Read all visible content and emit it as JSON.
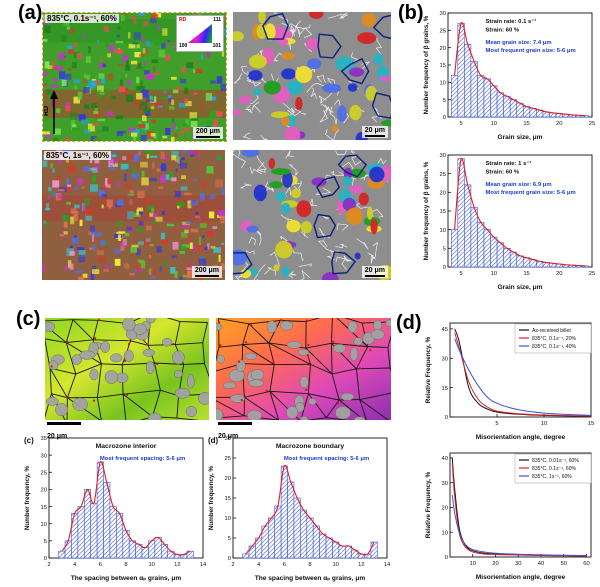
{
  "panels": {
    "a": {
      "label": "(a)",
      "maps": [
        {
          "title": "835°C, 0.1s⁻¹, 60%",
          "scale": "200 μm"
        },
        {
          "scale": "20 μm"
        },
        {
          "title": "835°C, 1s⁻¹, 60%",
          "scale": "200 μm"
        },
        {
          "scale": "20 μm"
        }
      ],
      "direction_label": "RD",
      "ipf_legend": {
        "rd": "RD",
        "c111": "111",
        "c100": "100",
        "c101": "101"
      }
    },
    "b": {
      "label": "(b)"
    },
    "c": {
      "label": "(c)",
      "scales": [
        "20 μm",
        "20 μm"
      ]
    },
    "d": {
      "label": "(d)"
    }
  },
  "colors": {
    "bar": "#3a55d6",
    "fit": "#e02020",
    "annotation_blue": "#1a3bd6",
    "axis": "#111111"
  },
  "chart_data": [
    {
      "id": "b-top",
      "type": "bar",
      "x": [
        4,
        5,
        6,
        7,
        8,
        9,
        10,
        11,
        12,
        13,
        14,
        15,
        16,
        17,
        18,
        19,
        20,
        21,
        22,
        23,
        24
      ],
      "values": [
        12,
        27,
        21,
        16,
        12,
        11,
        9,
        7,
        6,
        5,
        4,
        3,
        2.5,
        2,
        1.5,
        1.2,
        1,
        0.8,
        0.6,
        0.5,
        0.4
      ],
      "bar_width": 1,
      "xlabel": "Grain size, μm",
      "ylabel": "Number frequency of β grains, %",
      "xlim": [
        3,
        25
      ],
      "ylim": [
        0,
        30
      ],
      "xticks": [
        5,
        10,
        15,
        20,
        25
      ],
      "yticks": [
        0,
        5,
        10,
        15,
        20,
        25,
        30
      ],
      "ann_x": 0.26,
      "ann_y": 10,
      "annotations": [
        {
          "text": "Strain rate:  0.1 s⁻¹",
          "color": "#111111"
        },
        {
          "text": "Strain:  60 %",
          "color": "#111111"
        },
        {
          "text": "Mean grain size:  7.4 μm",
          "color": "#1a3bd6",
          "dy": 4
        },
        {
          "text": "Most frequent grain size:  5-6 μm",
          "color": "#1a3bd6"
        }
      ]
    },
    {
      "id": "b-bottom",
      "type": "bar",
      "x": [
        4,
        5,
        6,
        7,
        8,
        9,
        10,
        11,
        12,
        13,
        14,
        15,
        16,
        17,
        18,
        19,
        20,
        21,
        22,
        23,
        24
      ],
      "values": [
        10,
        29,
        22,
        16,
        12,
        10,
        8,
        6.5,
        5,
        4,
        3,
        2.5,
        2,
        1.5,
        1.2,
        1,
        0.8,
        0.6,
        0.5,
        0.4,
        0.3
      ],
      "bar_width": 1,
      "xlabel": "Grain size, μm",
      "ylabel": "Number frequency of β grains, %",
      "xlim": [
        3,
        25
      ],
      "ylim": [
        0,
        30
      ],
      "xticks": [
        5,
        10,
        15,
        20,
        25
      ],
      "yticks": [
        0,
        5,
        10,
        15,
        20,
        25,
        30
      ],
      "ann_x": 0.26,
      "ann_y": 10,
      "annotations": [
        {
          "text": "Strain rate:  1 s⁻¹",
          "color": "#111111"
        },
        {
          "text": "Strain:  60 %",
          "color": "#111111"
        },
        {
          "text": "Mean grain size:  6.9 μm",
          "color": "#1a3bd6",
          "dy": 4
        },
        {
          "text": "Most frequent grain size:  5-6 μm",
          "color": "#1a3bd6"
        }
      ]
    },
    {
      "id": "c-interior",
      "type": "bar",
      "corner_label": "(c)",
      "title": "Macrozone interior",
      "x": [
        3,
        3.5,
        4,
        4.5,
        5,
        5.5,
        6,
        6.5,
        7,
        7.5,
        8,
        8.5,
        9,
        9.5,
        10,
        10.5,
        11,
        11.5,
        12,
        12.5,
        13
      ],
      "values": [
        2,
        5,
        13,
        15,
        20,
        16,
        28,
        22,
        15,
        13,
        8,
        5,
        4,
        3,
        5,
        6,
        4,
        2,
        1,
        1,
        2
      ],
      "bar_width": 0.5,
      "xlabel": "The spacing between αₚ grains, μm",
      "ylabel": "Number frequency, %",
      "xlim": [
        2,
        14
      ],
      "ylim": [
        0,
        35
      ],
      "xticks": [
        2,
        4,
        6,
        8,
        10,
        12,
        14
      ],
      "yticks": [
        0,
        5,
        10,
        15,
        20,
        25,
        30,
        35
      ],
      "ann_x": 0.33,
      "ann_y": 22,
      "annotations": [
        {
          "text": "Most frequent spacing:  5-6 μm",
          "color": "#1a3bd6"
        }
      ]
    },
    {
      "id": "c-boundary",
      "type": "bar",
      "corner_label": "(d)",
      "title": "Macrozone boundary",
      "x": [
        3,
        3.5,
        4,
        4.5,
        5,
        5.5,
        6,
        6.5,
        7,
        7.5,
        8,
        8.5,
        9,
        9.5,
        10,
        10.5,
        11,
        11.5,
        12,
        12.5,
        13
      ],
      "values": [
        1,
        3,
        5,
        8,
        10,
        13,
        23,
        19,
        15,
        12,
        10,
        8,
        6,
        5,
        4,
        3,
        3,
        2,
        1,
        1,
        4
      ],
      "bar_width": 0.5,
      "xlabel": "The spacing between αₚ grains, μm",
      "ylabel": "Number frequency, %",
      "xlim": [
        2,
        14
      ],
      "ylim": [
        0,
        30
      ],
      "xticks": [
        2,
        4,
        6,
        8,
        10,
        12,
        14
      ],
      "yticks": [
        0,
        5,
        10,
        15,
        20,
        25,
        30
      ],
      "ann_x": 0.33,
      "ann_y": 22,
      "annotations": [
        {
          "text": "Most frequent spacing:  5-6 μm",
          "color": "#1a3bd6"
        }
      ]
    },
    {
      "id": "d-top",
      "type": "line",
      "x": [
        0.5,
        1,
        2,
        3,
        4,
        5,
        7,
        10,
        15
      ],
      "series": [
        {
          "name": "As-received billet",
          "color": "#111111",
          "values": [
            45,
            38,
            15,
            7,
            4,
            2.5,
            1.5,
            0.8,
            0.4
          ]
        },
        {
          "name": "835°C, 0.1s⁻¹, 20%",
          "color": "#e02020",
          "values": [
            43,
            35,
            18,
            9,
            5,
            3,
            1.8,
            1,
            0.5
          ]
        },
        {
          "name": "835°C, 0.1s⁻¹, 40%",
          "color": "#3a55d6",
          "values": [
            40,
            34,
            24,
            16,
            10,
            7,
            4,
            2,
            0.8
          ]
        }
      ],
      "xlabel": "Misorientation angle, degree",
      "ylabel": "Relative Frequency, %",
      "xlim": [
        0,
        15
      ],
      "ylim": [
        0,
        48
      ],
      "xticks": [
        5,
        10,
        15
      ],
      "yticks": [
        0,
        15,
        30,
        45
      ],
      "legend_pos": "top-right"
    },
    {
      "id": "d-bottom",
      "type": "line",
      "x": [
        1,
        2,
        4,
        6,
        8,
        10,
        15,
        20,
        30,
        40,
        50,
        60
      ],
      "series": [
        {
          "name": "835°C, 0.01s⁻¹, 60%",
          "color": "#111111",
          "values": [
            40,
            28,
            12,
            6,
            3.5,
            2.5,
            1.5,
            1.2,
            0.9,
            0.7,
            0.6,
            0.5
          ]
        },
        {
          "name": "835°C, 0.1s⁻¹, 60%",
          "color": "#e02020",
          "values": [
            38,
            25,
            10,
            5,
            3,
            2,
            1.2,
            1,
            0.8,
            0.6,
            0.5,
            0.4
          ]
        },
        {
          "name": "835°C, 1s⁻¹, 60%",
          "color": "#3a55d6",
          "values": [
            25,
            18,
            10,
            6,
            4,
            3,
            2,
            1.5,
            1.1,
            0.9,
            0.7,
            0.6
          ]
        }
      ],
      "xlabel": "Misorientation angle, degree",
      "ylabel": "Relative Frequency, %",
      "xlim": [
        0,
        62
      ],
      "ylim": [
        0,
        42
      ],
      "xticks": [
        10,
        20,
        30,
        40,
        50,
        60
      ],
      "yticks": [
        0,
        10,
        20,
        30,
        40
      ],
      "legend_pos": "top-right"
    }
  ]
}
